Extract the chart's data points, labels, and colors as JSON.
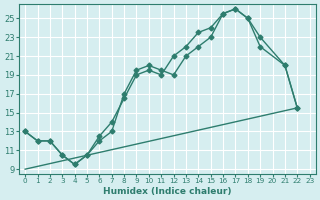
{
  "xlabel": "Humidex (Indice chaleur)",
  "bg_color": "#d6eef0",
  "grid_color": "#ffffff",
  "line_color": "#2e7d6e",
  "xlim": [
    -0.5,
    23.5
  ],
  "ylim": [
    8.5,
    26.5
  ],
  "xticks": [
    0,
    1,
    2,
    3,
    4,
    5,
    6,
    7,
    8,
    9,
    10,
    11,
    12,
    13,
    14,
    15,
    16,
    17,
    18,
    19,
    20,
    21,
    22,
    23
  ],
  "yticks": [
    9,
    11,
    13,
    15,
    17,
    19,
    21,
    23,
    25
  ],
  "line1_x": [
    0,
    1,
    2,
    3,
    4,
    5,
    6,
    7,
    8,
    9,
    10,
    11,
    12,
    13,
    14,
    15,
    16,
    17,
    18,
    19,
    21,
    22
  ],
  "line1_y": [
    13,
    12,
    12,
    10.5,
    9.5,
    10.5,
    12,
    13,
    17,
    19.5,
    20,
    19.5,
    19,
    21,
    22,
    23,
    25.5,
    26,
    25,
    23,
    20,
    15.5
  ],
  "line2_x": [
    0,
    1,
    2,
    3,
    4,
    5,
    6,
    7,
    8,
    9,
    10,
    11,
    12,
    13,
    14,
    15,
    16,
    17,
    18,
    19,
    21,
    22
  ],
  "line2_y": [
    13,
    12,
    12,
    10.5,
    9.5,
    10.5,
    12.5,
    14,
    16.5,
    19,
    19.5,
    19,
    21,
    22,
    23.5,
    24,
    25.5,
    26,
    25,
    22,
    20,
    15.5
  ],
  "line3_x": [
    0,
    22
  ],
  "line3_y": [
    9,
    15.5
  ]
}
